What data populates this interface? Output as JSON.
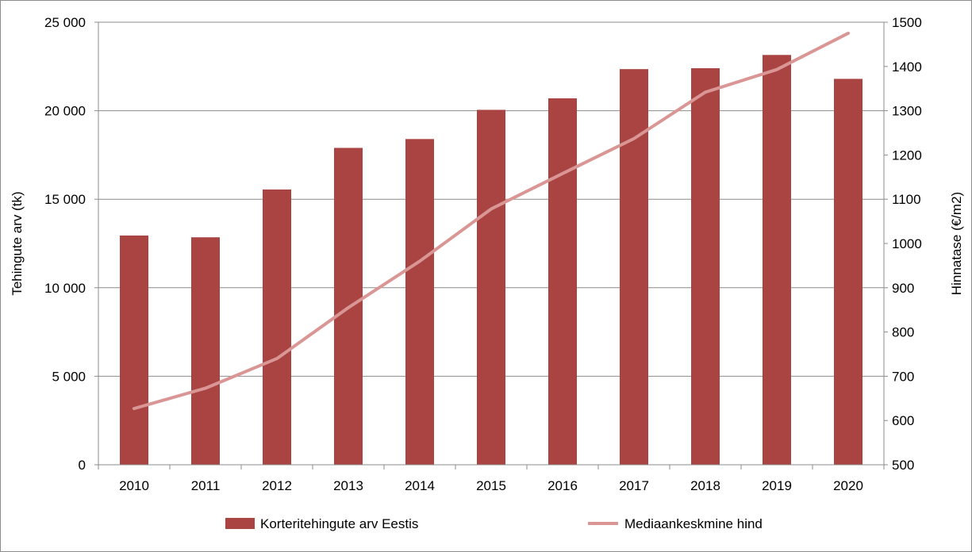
{
  "chart_data": {
    "type": "bar",
    "title": "",
    "categories": [
      "2010",
      "2011",
      "2012",
      "2013",
      "2014",
      "2015",
      "2016",
      "2017",
      "2018",
      "2019",
      "2020"
    ],
    "series": [
      {
        "name": "Korteritehingute arv Eestis",
        "type": "bar",
        "axis": "left",
        "color": "#a94442",
        "values": [
          12950,
          12850,
          15550,
          17900,
          18400,
          20050,
          20700,
          22350,
          22400,
          23150,
          21800
        ]
      },
      {
        "name": "Mediaankeskmine hind",
        "type": "line",
        "axis": "right",
        "color": "#d99694",
        "values": [
          627,
          673,
          740,
          855,
          960,
          1078,
          1158,
          1237,
          1342,
          1393,
          1475
        ]
      }
    ],
    "ylabel": "Tehingute arv (tk)",
    "ylim": [
      0,
      25000
    ],
    "yticks": [
      "0",
      "5 000",
      "10 000",
      "15 000",
      "20 000",
      "25 000"
    ],
    "y2label": "Hinnatase (€/m2)",
    "y2lim": [
      500,
      1500
    ],
    "y2ticks": [
      "500",
      "600",
      "700",
      "800",
      "900",
      "1000",
      "1100",
      "1200",
      "1300",
      "1400",
      "1500"
    ],
    "grid": true,
    "legend_position": "bottom"
  }
}
